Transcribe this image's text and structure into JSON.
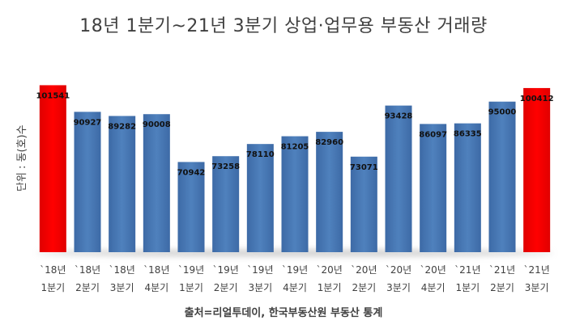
{
  "chart_data": {
    "type": "bar",
    "title": "18년 1분기~21년 3분기 상업·업무용 부동산 거래량",
    "ylabel": "단위 : 동(호)수",
    "source": "출처=리얼투데이, 한국부동산원 부동산 통계",
    "categories": [
      [
        "`18년",
        "1분기"
      ],
      [
        "`18년",
        "2분기"
      ],
      [
        "`18년",
        "3분기"
      ],
      [
        "`18년",
        "4분기"
      ],
      [
        "`19년",
        "1분기"
      ],
      [
        "`19년",
        "2분기"
      ],
      [
        "`19년",
        "3분기"
      ],
      [
        "`19년",
        "4분기"
      ],
      [
        "`20년",
        "1분기"
      ],
      [
        "`20년",
        "2분기"
      ],
      [
        "`20년",
        "3분기"
      ],
      [
        "`20년",
        "4분기"
      ],
      [
        "`21년",
        "1분기"
      ],
      [
        "`21년",
        "2분기"
      ],
      [
        "`21년",
        "3분기"
      ]
    ],
    "values": [
      101541,
      90927,
      89282,
      90008,
      70942,
      73258,
      78110,
      81205,
      82960,
      73071,
      93428,
      86097,
      86335,
      95000,
      100412
    ],
    "highlight": [
      0,
      14
    ],
    "colors": {
      "bar": "#4f81bd",
      "highlight": "#ff0000"
    },
    "ylim": [
      35000,
      102000
    ]
  }
}
